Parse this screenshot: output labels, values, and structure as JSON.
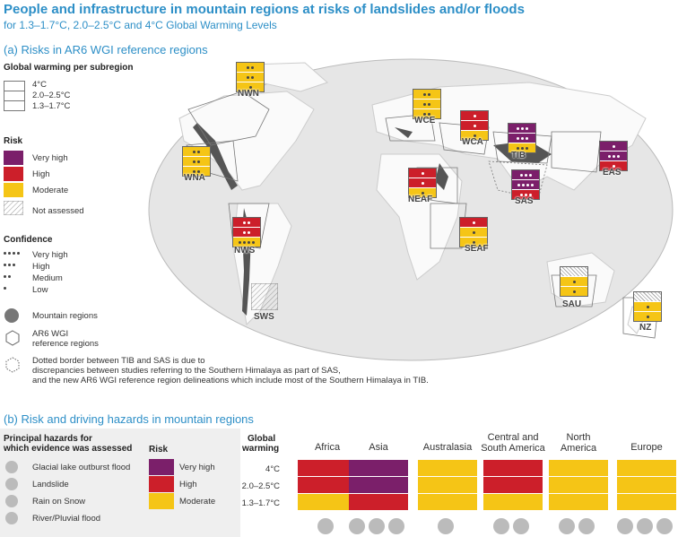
{
  "title": "People and infrastructure in mountain regions at risks of landslides and/or floods",
  "subtitle": "for 1.3–1.7°C, 2.0–2.5°C and 4°C Global Warming Levels",
  "panel_a": {
    "heading": "(a) Risks in AR6 WGI reference regions",
    "gw_legend": {
      "title": "Global warming per subregion",
      "levels": [
        "4°C",
        "2.0–2.5°C",
        "1.3–1.7°C"
      ]
    },
    "risk_legend": {
      "title": "Risk",
      "items": [
        "Very high",
        "High",
        "Moderate",
        "Not assessed"
      ]
    },
    "confidence_legend": {
      "title": "Confidence",
      "items": [
        "Very high",
        "High",
        "Medium",
        "Low"
      ]
    },
    "mountain_label": "Mountain regions",
    "ar6_label_1": "AR6 WGI",
    "ar6_label_2": "reference regions",
    "note_1": "Dotted border between TIB and SAS is due to",
    "note_2": "discrepancies between studies referring to the Southern Himalaya as part of SAS,",
    "note_3": "and the new AR6 WGI reference region delineations which include most of the Southern Himalaya in TIB.",
    "regions": [
      {
        "code": "NWN",
        "levels": [
          {
            "risk": "Moderate",
            "conf": 2
          },
          {
            "risk": "Moderate",
            "conf": 2
          },
          {
            "risk": "Moderate",
            "conf": 1
          }
        ]
      },
      {
        "code": "WNA",
        "levels": [
          {
            "risk": "Moderate",
            "conf": 2
          },
          {
            "risk": "Moderate",
            "conf": 2
          },
          {
            "risk": "Moderate",
            "conf": 2
          }
        ]
      },
      {
        "code": "WCE",
        "levels": [
          {
            "risk": "Moderate",
            "conf": 2
          },
          {
            "risk": "Moderate",
            "conf": 2
          },
          {
            "risk": "Moderate",
            "conf": 2
          }
        ]
      },
      {
        "code": "WCA",
        "levels": [
          {
            "risk": "High",
            "conf": 1
          },
          {
            "risk": "High",
            "conf": 1
          },
          {
            "risk": "Moderate",
            "conf": 1
          }
        ]
      },
      {
        "code": "TIB",
        "levels": [
          {
            "risk": "Very high",
            "conf": 3
          },
          {
            "risk": "Very high",
            "conf": 3
          },
          {
            "risk": "Moderate",
            "conf": 3
          }
        ]
      },
      {
        "code": "EAS",
        "levels": [
          {
            "risk": "Very high",
            "conf": 1
          },
          {
            "risk": "Very high",
            "conf": 3
          },
          {
            "risk": "High",
            "conf": 1
          }
        ]
      },
      {
        "code": "SAS",
        "levels": [
          {
            "risk": "Very high",
            "conf": 3
          },
          {
            "risk": "Very high",
            "conf": 4
          },
          {
            "risk": "High",
            "conf": 3
          }
        ]
      },
      {
        "code": "NEAF",
        "levels": [
          {
            "risk": "High",
            "conf": 1
          },
          {
            "risk": "High",
            "conf": 1
          },
          {
            "risk": "Moderate",
            "conf": 1
          }
        ]
      },
      {
        "code": "NWS",
        "levels": [
          {
            "risk": "High",
            "conf": 2
          },
          {
            "risk": "High",
            "conf": 2
          },
          {
            "risk": "Moderate",
            "conf": 4
          }
        ]
      },
      {
        "code": "SEAF",
        "levels": [
          {
            "risk": "High",
            "conf": 1
          },
          {
            "risk": "Moderate",
            "conf": 1
          },
          {
            "risk": "Moderate",
            "conf": 1
          }
        ]
      },
      {
        "code": "SAU",
        "levels": [
          {
            "risk": "Not assessed",
            "conf": 0
          },
          {
            "risk": "Moderate",
            "conf": 1
          },
          {
            "risk": "Moderate",
            "conf": 1
          }
        ]
      },
      {
        "code": "NZ",
        "levels": [
          {
            "risk": "Not assessed",
            "conf": 0
          },
          {
            "risk": "Moderate",
            "conf": 1
          },
          {
            "risk": "Moderate",
            "conf": 1
          }
        ]
      },
      {
        "code": "SWS",
        "levels": [
          {
            "risk": "Not assessed",
            "conf": 0
          },
          {
            "risk": "Not assessed",
            "conf": 0
          },
          {
            "risk": "Not assessed",
            "conf": 0
          }
        ]
      }
    ]
  },
  "panel_b": {
    "heading": "(b) Risk and driving hazards in mountain regions",
    "hazards_title_1": "Principal hazards for",
    "hazards_title_2": "which evidence was assessed",
    "hazards": [
      "Glacial lake outburst flood",
      "Landslide",
      "Rain on Snow",
      "River/Pluvial flood"
    ],
    "risk_title": "Risk",
    "risk_items": [
      "Very high",
      "High",
      "Moderate"
    ],
    "gw_title_1": "Global",
    "gw_title_2": "warming",
    "rows": [
      "4°C",
      "2.0–2.5°C",
      "1.3–1.7°C"
    ],
    "columns": [
      {
        "name1": "Africa",
        "name2": "",
        "cells": [
          "High",
          "High",
          "Moderate"
        ],
        "hazard_icons": [
          "river-flood"
        ]
      },
      {
        "name1": "Asia",
        "name2": "",
        "cells": [
          "Very high",
          "Very high",
          "High"
        ],
        "hazard_icons": [
          "glof",
          "landslide",
          "river-flood"
        ]
      },
      {
        "name1": "Australasia",
        "name2": "",
        "cells": [
          "Moderate",
          "Moderate",
          "Moderate"
        ],
        "hazard_icons": [
          "river-flood"
        ]
      },
      {
        "name1": "Central and",
        "name2": "South America",
        "cells": [
          "High",
          "High",
          "Moderate"
        ],
        "hazard_icons": [
          "glof",
          "landslide"
        ]
      },
      {
        "name1": "North",
        "name2": "America",
        "cells": [
          "Moderate",
          "Moderate",
          "Moderate"
        ],
        "hazard_icons": [
          "rain-on-snow",
          "river-flood"
        ]
      },
      {
        "name1": "Europe",
        "name2": "",
        "cells": [
          "Moderate",
          "Moderate",
          "Moderate"
        ],
        "hazard_icons": [
          "rain-on-snow",
          "landslide",
          "river-flood"
        ]
      }
    ]
  },
  "colors": {
    "very_high": "#7b1f6a",
    "high": "#cc1f2a",
    "moderate": "#f5c516",
    "title": "#2d8fc7",
    "ocean": "#e6e6e6",
    "land": "#fafafa",
    "mountain": "#444444"
  }
}
